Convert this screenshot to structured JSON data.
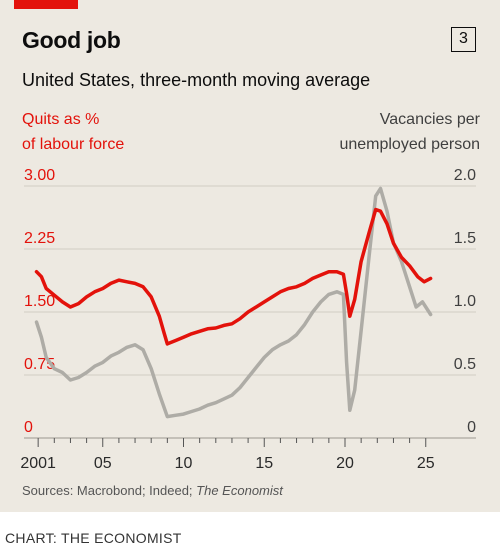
{
  "header": {
    "title": "Good job",
    "badge": "3",
    "subtitle": "United States, three-month moving average"
  },
  "labels": {
    "left_line1": "Quits as %",
    "left_line2": "of labour force",
    "right_line1": "Vacancies per",
    "right_line2": "unemployed person"
  },
  "footer": {
    "source_prefix": "Sources: Macrobond; Indeed; ",
    "source_italic": "The Economist",
    "credit": "CHART: THE ECONOMIST"
  },
  "colors": {
    "quits": "#e3120b",
    "vacancies": "#aeaca6",
    "grid": "#d1cdc4",
    "background": "#ede9e1"
  },
  "chart_data": {
    "type": "line",
    "title": "Good job",
    "subtitle": "United States, three-month moving average",
    "xlim": [
      2000,
      2026
    ],
    "x_ticks": [
      2001,
      2005,
      2010,
      2015,
      2020,
      2025
    ],
    "x_tick_labels": [
      "2001",
      "05",
      "10",
      "15",
      "20",
      "25"
    ],
    "y_left": {
      "label": "Quits as % of labour force",
      "range": [
        0,
        3
      ],
      "ticks": [
        0,
        0.75,
        1.5,
        2.25,
        3
      ],
      "tick_labels": [
        "0",
        "0.75",
        "1.50",
        "2.25",
        "3.00"
      ]
    },
    "y_right": {
      "label": "Vacancies per unemployed person",
      "range": [
        0,
        2
      ],
      "ticks": [
        0,
        0.5,
        1,
        1.5,
        2
      ],
      "tick_labels": [
        "0",
        "0.5",
        "1.0",
        "1.5",
        "2.0"
      ]
    },
    "grid": true,
    "series": [
      {
        "name": "Quits as % of labour force",
        "axis": "left",
        "points": [
          [
            2000.9,
            1.98
          ],
          [
            2001.2,
            1.92
          ],
          [
            2001.5,
            1.78
          ],
          [
            2002.0,
            1.7
          ],
          [
            2002.5,
            1.62
          ],
          [
            2003.0,
            1.56
          ],
          [
            2003.5,
            1.6
          ],
          [
            2004.0,
            1.68
          ],
          [
            2004.5,
            1.74
          ],
          [
            2005.0,
            1.78
          ],
          [
            2005.5,
            1.84
          ],
          [
            2006.0,
            1.88
          ],
          [
            2006.5,
            1.86
          ],
          [
            2007.0,
            1.84
          ],
          [
            2007.5,
            1.8
          ],
          [
            2008.0,
            1.68
          ],
          [
            2008.5,
            1.45
          ],
          [
            2008.8,
            1.25
          ],
          [
            2009.0,
            1.12
          ],
          [
            2009.5,
            1.16
          ],
          [
            2010.0,
            1.2
          ],
          [
            2010.5,
            1.24
          ],
          [
            2011.0,
            1.27
          ],
          [
            2011.5,
            1.3
          ],
          [
            2012.0,
            1.31
          ],
          [
            2012.5,
            1.34
          ],
          [
            2013.0,
            1.36
          ],
          [
            2013.5,
            1.42
          ],
          [
            2014.0,
            1.5
          ],
          [
            2014.5,
            1.56
          ],
          [
            2015.0,
            1.62
          ],
          [
            2015.5,
            1.68
          ],
          [
            2016.0,
            1.74
          ],
          [
            2016.5,
            1.78
          ],
          [
            2017.0,
            1.8
          ],
          [
            2017.5,
            1.84
          ],
          [
            2018.0,
            1.9
          ],
          [
            2018.5,
            1.94
          ],
          [
            2019.0,
            1.98
          ],
          [
            2019.5,
            1.98
          ],
          [
            2019.9,
            1.95
          ],
          [
            2020.1,
            1.72
          ],
          [
            2020.3,
            1.45
          ],
          [
            2020.6,
            1.65
          ],
          [
            2021.0,
            2.1
          ],
          [
            2021.5,
            2.45
          ],
          [
            2021.9,
            2.72
          ],
          [
            2022.2,
            2.7
          ],
          [
            2022.6,
            2.55
          ],
          [
            2023.0,
            2.32
          ],
          [
            2023.5,
            2.15
          ],
          [
            2024.0,
            2.05
          ],
          [
            2024.5,
            1.92
          ],
          [
            2024.9,
            1.86
          ],
          [
            2025.3,
            1.9
          ]
        ]
      },
      {
        "name": "Vacancies per unemployed person",
        "axis": "right",
        "points": [
          [
            2000.9,
            0.92
          ],
          [
            2001.2,
            0.8
          ],
          [
            2001.5,
            0.64
          ],
          [
            2002.0,
            0.55
          ],
          [
            2002.5,
            0.52
          ],
          [
            2003.0,
            0.46
          ],
          [
            2003.5,
            0.48
          ],
          [
            2004.0,
            0.52
          ],
          [
            2004.5,
            0.57
          ],
          [
            2005.0,
            0.6
          ],
          [
            2005.5,
            0.65
          ],
          [
            2006.0,
            0.68
          ],
          [
            2006.5,
            0.72
          ],
          [
            2007.0,
            0.74
          ],
          [
            2007.5,
            0.7
          ],
          [
            2008.0,
            0.55
          ],
          [
            2008.5,
            0.35
          ],
          [
            2009.0,
            0.17
          ],
          [
            2009.5,
            0.18
          ],
          [
            2010.0,
            0.19
          ],
          [
            2010.5,
            0.21
          ],
          [
            2011.0,
            0.23
          ],
          [
            2011.5,
            0.26
          ],
          [
            2012.0,
            0.28
          ],
          [
            2012.5,
            0.31
          ],
          [
            2013.0,
            0.34
          ],
          [
            2013.5,
            0.4
          ],
          [
            2014.0,
            0.48
          ],
          [
            2014.5,
            0.56
          ],
          [
            2015.0,
            0.64
          ],
          [
            2015.5,
            0.7
          ],
          [
            2016.0,
            0.74
          ],
          [
            2016.5,
            0.77
          ],
          [
            2017.0,
            0.82
          ],
          [
            2017.5,
            0.9
          ],
          [
            2018.0,
            1.0
          ],
          [
            2018.5,
            1.08
          ],
          [
            2019.0,
            1.14
          ],
          [
            2019.5,
            1.16
          ],
          [
            2019.9,
            1.14
          ],
          [
            2020.1,
            0.6
          ],
          [
            2020.3,
            0.22
          ],
          [
            2020.6,
            0.38
          ],
          [
            2021.0,
            0.85
          ],
          [
            2021.5,
            1.45
          ],
          [
            2021.9,
            1.92
          ],
          [
            2022.2,
            1.98
          ],
          [
            2022.6,
            1.8
          ],
          [
            2023.0,
            1.55
          ],
          [
            2023.5,
            1.4
          ],
          [
            2024.0,
            1.2
          ],
          [
            2024.4,
            1.04
          ],
          [
            2024.8,
            1.08
          ],
          [
            2025.3,
            0.98
          ]
        ]
      }
    ]
  }
}
